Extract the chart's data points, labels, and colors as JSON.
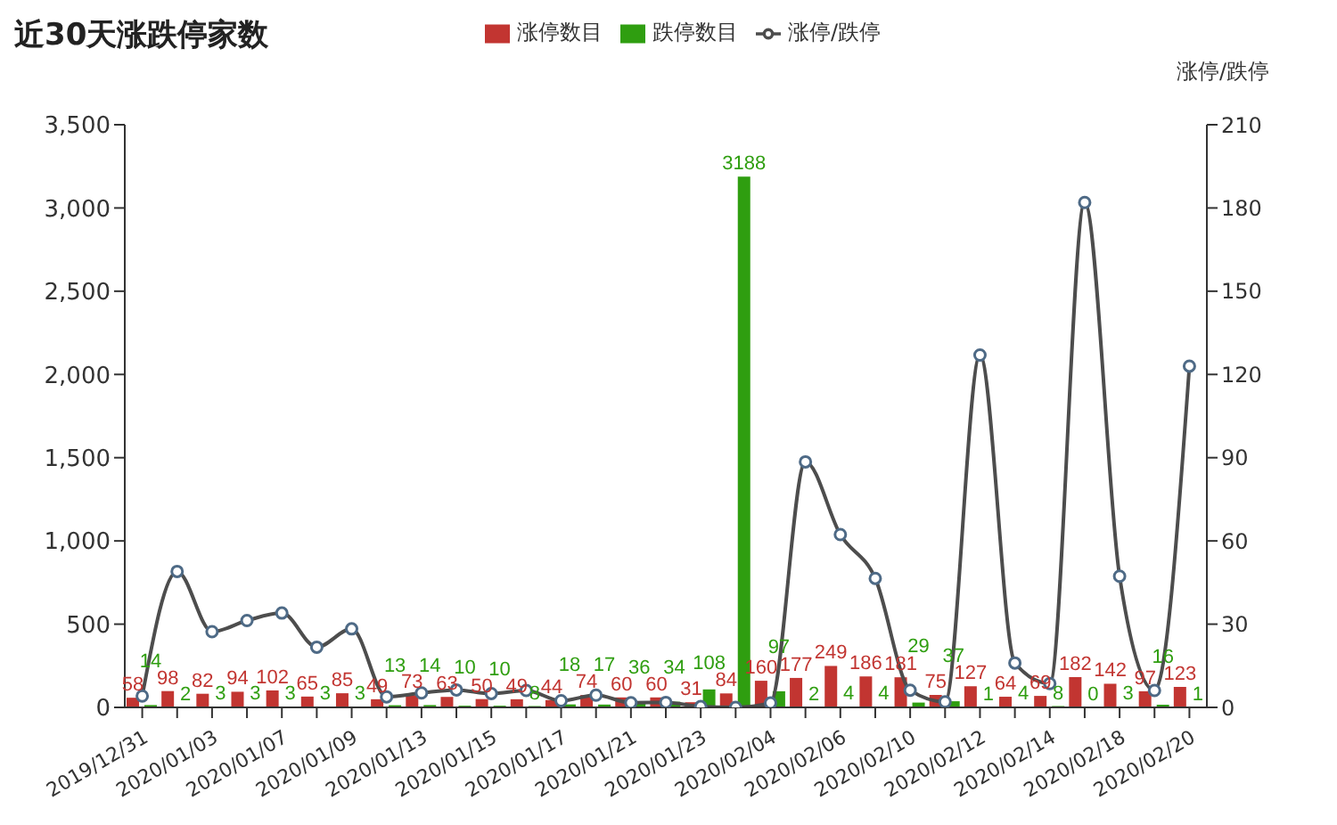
{
  "chart_data": {
    "type": "bar",
    "title": "近30天涨跌停家数",
    "y2label": "涨停/跌停",
    "categories": [
      "2019/12/31",
      null,
      "2020/01/03",
      null,
      "2020/01/07",
      null,
      "2020/01/09",
      null,
      "2020/01/13",
      null,
      "2020/01/15",
      null,
      "2020/01/17",
      null,
      "2020/01/21",
      null,
      "2020/01/23",
      null,
      "2020/02/04",
      null,
      "2020/02/06",
      null,
      "2020/02/10",
      null,
      "2020/02/12",
      null,
      "2020/02/14",
      null,
      "2020/02/18",
      null,
      "2020/02/20"
    ],
    "series": [
      {
        "name": "涨停数目",
        "color": "#c23531",
        "values": [
          58,
          98,
          82,
          94,
          102,
          65,
          85,
          49,
          73,
          63,
          50,
          49,
          44,
          74,
          60,
          60,
          31,
          84,
          160,
          177,
          249,
          186,
          181,
          75,
          127,
          64,
          69,
          182,
          142,
          97,
          123
        ],
        "value_labels": [
          "58",
          "98",
          "82",
          "94",
          "102",
          "65",
          "85",
          "49",
          "73",
          "63",
          "50",
          "49",
          "44",
          "74",
          "60",
          "60",
          "31",
          "84",
          "160",
          "177",
          "249",
          "186",
          "181",
          "75",
          "127",
          "64",
          "69",
          "182",
          "142",
          "97",
          "123"
        ]
      },
      {
        "name": "跌停数目",
        "color": "#2f9e10",
        "values": [
          14,
          2,
          3,
          3,
          3,
          3,
          3,
          13,
          14,
          10,
          10,
          8,
          18,
          17,
          36,
          34,
          108,
          3188,
          97,
          2,
          4,
          4,
          29,
          37,
          1,
          4,
          8,
          0,
          3,
          16,
          1
        ],
        "value_labels": [
          "14",
          "2",
          "3",
          "3",
          "3",
          "3",
          "3",
          "13",
          "14",
          "10",
          "10",
          "8",
          "18",
          "17",
          "36",
          "34",
          "108",
          "3188",
          "97",
          "2",
          "4",
          "4",
          "29",
          "37",
          "1",
          "4",
          "8",
          "0",
          "3",
          "16",
          "1"
        ]
      },
      {
        "name": "涨停/跌停",
        "type": "line",
        "axis": "y2",
        "color": "#4d4d4d",
        "values": [
          4.1,
          49,
          27.3,
          31.3,
          34,
          21.7,
          28.3,
          3.8,
          5.2,
          6.3,
          5,
          6.1,
          2.4,
          4.4,
          1.7,
          1.8,
          0.3,
          0,
          1.6,
          88.5,
          62.3,
          46.5,
          6.2,
          2,
          127,
          16,
          8.6,
          182,
          47.3,
          6.1,
          123
        ]
      }
    ],
    "ylim": [
      0,
      3500
    ],
    "yticks": [
      0,
      500,
      {
        "value": 1000,
        "label": "1,000"
      },
      {
        "value": 1500,
        "label": "1,500"
      },
      {
        "value": 2000,
        "label": "2,000"
      },
      {
        "value": 2500,
        "label": "2,500"
      },
      {
        "value": 3000,
        "label": "3,000"
      },
      {
        "value": 3500,
        "label": "3,500"
      }
    ],
    "y2lim": [
      0,
      210
    ],
    "y2ticks": [
      0,
      30,
      60,
      90,
      120,
      150,
      180,
      210
    ],
    "legend": "top",
    "grid": false,
    "marker": "circle",
    "line_style": "solid"
  }
}
